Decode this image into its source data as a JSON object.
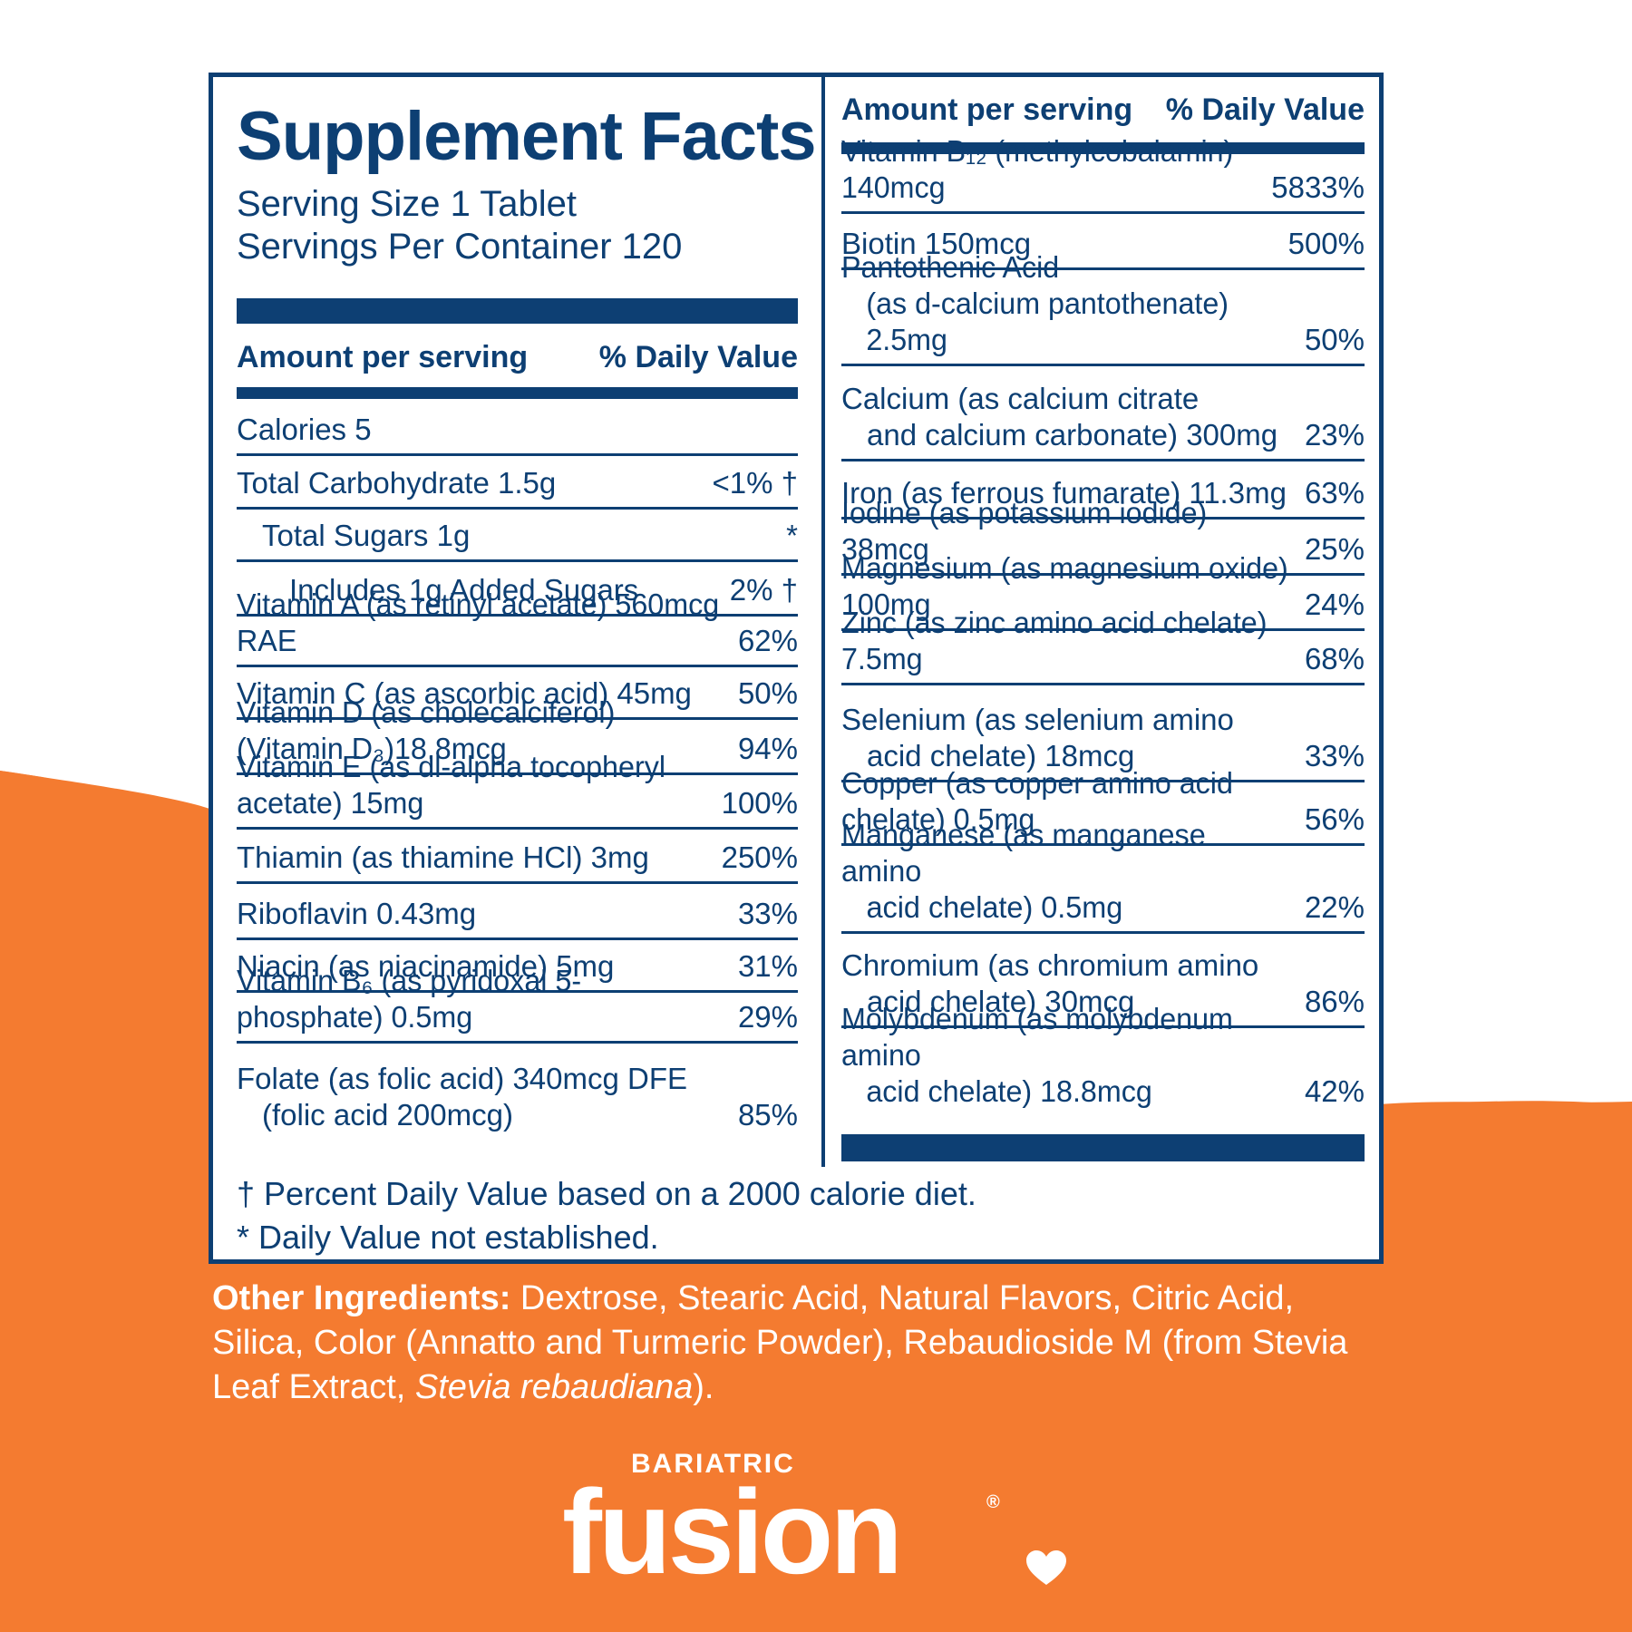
{
  "colors": {
    "navy": "#0d3f73",
    "orange": "#f47b30",
    "white": "#ffffff"
  },
  "facts": {
    "title": "Supplement Facts",
    "serving_size": "Serving Size 1 Tablet",
    "servings_per_container": "Servings Per Container 120",
    "header_amount": "Amount per serving",
    "header_dv": "% Daily Value",
    "left_rows": [
      {
        "name": "Calories 5",
        "dv": ""
      },
      {
        "name": "Total Carbohydrate 1.5g",
        "dv": "<1% †"
      },
      {
        "name": "Total Sugars 1g",
        "dv": "*"
      },
      {
        "name": "Includes 1g Added Sugars",
        "dv": "2% †"
      },
      {
        "name": "Vitamin A (as retinyl acetate) 560mcg RAE",
        "dv": "62%"
      },
      {
        "name": "Vitamin C (as ascorbic acid) 45mg",
        "dv": "50%"
      },
      {
        "name": "Vitamin D (as cholecalciferol) (Vitamin D₃)18.8mcg",
        "dv": "94%"
      },
      {
        "name": "Vitamin E (as dl-alpha tocopheryl acetate) 15mg",
        "dv": "100%"
      },
      {
        "name": "Thiamin (as thiamine HCl) 3mg",
        "dv": "250%"
      },
      {
        "name": "Riboflavin 0.43mg",
        "dv": "33%"
      },
      {
        "name": "Niacin (as niacinamide) 5mg",
        "dv": "31%"
      },
      {
        "name": "Vitamin B₆ (as pyridoxal 5-phosphate) 0.5mg",
        "dv": "29%"
      },
      {
        "name": "Folate (as folic acid) 340mcg DFE",
        "name2": "(folic acid 200mcg)",
        "dv": "85%"
      }
    ],
    "right_rows": [
      {
        "name": "Vitamin B₁₂ (methylcobalamin) 140mcg",
        "dv": "5833%"
      },
      {
        "name": "Biotin 150mcg",
        "dv": "500%"
      },
      {
        "name": "Pantothenic Acid",
        "name2": "(as d-calcium pantothenate) 2.5mg",
        "dv": "50%"
      },
      {
        "name": "Calcium (as calcium citrate",
        "name2": "and calcium carbonate) 300mg",
        "dv": "23%"
      },
      {
        "name": "Iron (as ferrous fumarate) 11.3mg",
        "dv": "63%"
      },
      {
        "name": "Iodine (as potassium iodide) 38mcg",
        "dv": "25%"
      },
      {
        "name": "Magnesium (as magnesium oxide) 100mg",
        "dv": "24%"
      },
      {
        "name": "Zinc (as zinc amino acid chelate) 7.5mg",
        "dv": "68%"
      },
      {
        "name": "Selenium (as selenium amino",
        "name2": "acid chelate) 18mcg",
        "dv": "33%"
      },
      {
        "name": "Copper (as copper amino acid chelate) 0.5mg",
        "dv": "56%"
      },
      {
        "name": "Manganese (as manganese amino",
        "name2": "acid chelate) 0.5mg",
        "dv": "22%"
      },
      {
        "name": "Chromium (as chromium amino",
        "name2": "acid chelate) 30mcg",
        "dv": "86%"
      },
      {
        "name": "Molybdenum (as molybdenum amino",
        "name2": "acid chelate) 18.8mcg",
        "dv": "42%"
      }
    ],
    "footnote_dagger": "† Percent Daily Value based on a 2000 calorie diet.",
    "footnote_star": "* Daily Value not established."
  },
  "ingredients": {
    "lead": "Other Ingredients:",
    "text": " Dextrose, Stearic Acid, Natural Flavors, Citric Acid, Silica, Color (Annatto and Turmeric Powder), Rebaudioside M (from Stevia Leaf Extract, ",
    "italic": "Stevia rebaudiana",
    "tail": ")."
  },
  "brand": {
    "sub": "BARIATRIC",
    "main": "fusion",
    "reg": "®",
    "heart_icon": "heart-icon"
  }
}
